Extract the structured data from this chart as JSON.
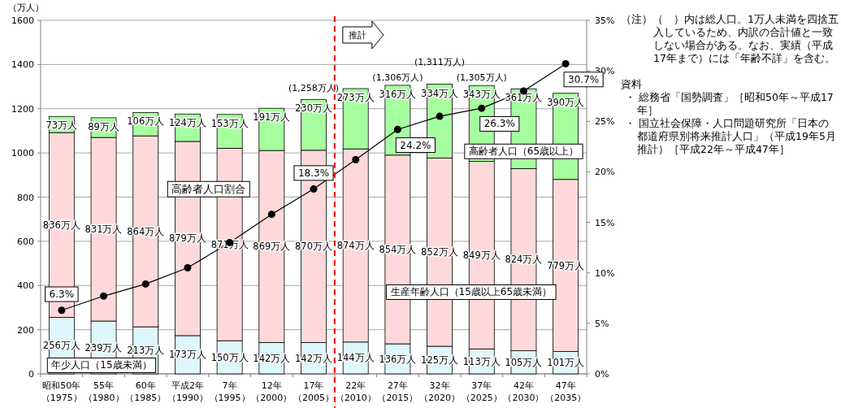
{
  "chart_data": {
    "type": "bar",
    "stacked": true,
    "ylabel": "（万人）",
    "categories": [
      "昭和50年（1975）",
      "55年（1980）",
      "60年（1985）",
      "平成2年（1990）",
      "7年（1995）",
      "12年（2000）",
      "17年（2005）",
      "22年（2010）",
      "27年（2015）",
      "32年（2020）",
      "37年（2025）",
      "42年（2030）",
      "47年（2035）"
    ],
    "series": [
      {
        "name": "年少人口（15歳未満）",
        "color": "#ddf7fd",
        "values": [
          256,
          239,
          213,
          173,
          150,
          142,
          142,
          144,
          136,
          125,
          113,
          105,
          101
        ],
        "value_labels": [
          "256万人",
          "239万人",
          "213万人",
          "173万人",
          "150万人",
          "142万人",
          "142万人",
          "144万人",
          "136万人",
          "125万人",
          "113万人",
          "105万人",
          "101万人"
        ]
      },
      {
        "name": "生産年齢人口（15歳以上65歳未満）",
        "color": "#ffd9d9",
        "values": [
          836,
          831,
          864,
          879,
          871,
          869,
          870,
          874,
          854,
          852,
          849,
          824,
          779
        ],
        "value_labels": [
          "836万人",
          "831万人",
          "864万人",
          "879万人",
          "871万人",
          "869万人",
          "870万人",
          "874万人",
          "854万人",
          "852万人",
          "849万人",
          "824万人",
          "779万人"
        ]
      },
      {
        "name": "高齢者人口（65歳以上）",
        "color": "#a6ff9f",
        "values": [
          73,
          89,
          106,
          124,
          153,
          191,
          230,
          273,
          316,
          334,
          343,
          361,
          390
        ],
        "value_labels": [
          "73万人",
          "89万人",
          "106万人",
          "124万人",
          "153万人",
          "191万人",
          "230万人",
          "273万人",
          "316万人",
          "334万人",
          "343万人",
          "361万人",
          "390万人"
        ]
      },
      {
        "name": "高齢者人口割合",
        "type": "line",
        "axis": "y2",
        "color": "#000000",
        "values": [
          6.3,
          7.7,
          8.9,
          10.5,
          13.0,
          15.8,
          18.3,
          21.2,
          24.2,
          25.5,
          26.3,
          28.0,
          30.7
        ],
        "value_labels": [
          "6.3%",
          null,
          null,
          null,
          null,
          null,
          "18.3%",
          null,
          "24.2%",
          null,
          "26.3%",
          null,
          "30.7%"
        ]
      }
    ],
    "marker": "circle",
    "line_style": "solid",
    "grid": "y",
    "ylim": [
      0,
      1600
    ],
    "yticks": [
      0,
      200,
      400,
      600,
      800,
      1000,
      1200,
      1400,
      1600
    ],
    "y2lim": [
      0,
      35
    ],
    "y2ticks": [
      {
        "value": 0,
        "label": "0%"
      },
      {
        "value": 5,
        "label": "5%"
      },
      {
        "value": 10,
        "label": "10%"
      },
      {
        "value": 15,
        "label": "15%"
      },
      {
        "value": 20,
        "label": "20%"
      },
      {
        "value": 25,
        "label": "25%"
      },
      {
        "value": 30,
        "label": "30%"
      },
      {
        "value": 35,
        "label": "35%"
      }
    ],
    "annotations": [
      "推計",
      {
        "text": "(1,258万人)",
        "x": "17年（2005）",
        "y": 1258
      },
      {
        "text": "(1,306万人)",
        "x": "27年（2015）",
        "y": 1306
      },
      {
        "text": "(1,311万人)",
        "x": "32年（2020）",
        "y": 1311
      },
      {
        "text": "(1,305万人)",
        "x": "37年（2025）",
        "y": 1305
      },
      "（注）（　）内は総人口。1万人未満を四捨五入しているため、内訳の合計値と一致しない場合がある。なお、実績（平成17年まで）には「年齢不詳」を含む。",
      "資料",
      "・ 総務省「国勢調査」［昭和50年～平成17年］",
      "・ 国立社会保障・人口問題研究所「日本の都道府県別将来推計人口」（平成19年5月推計）［平成22年～平成47年］"
    ]
  }
}
